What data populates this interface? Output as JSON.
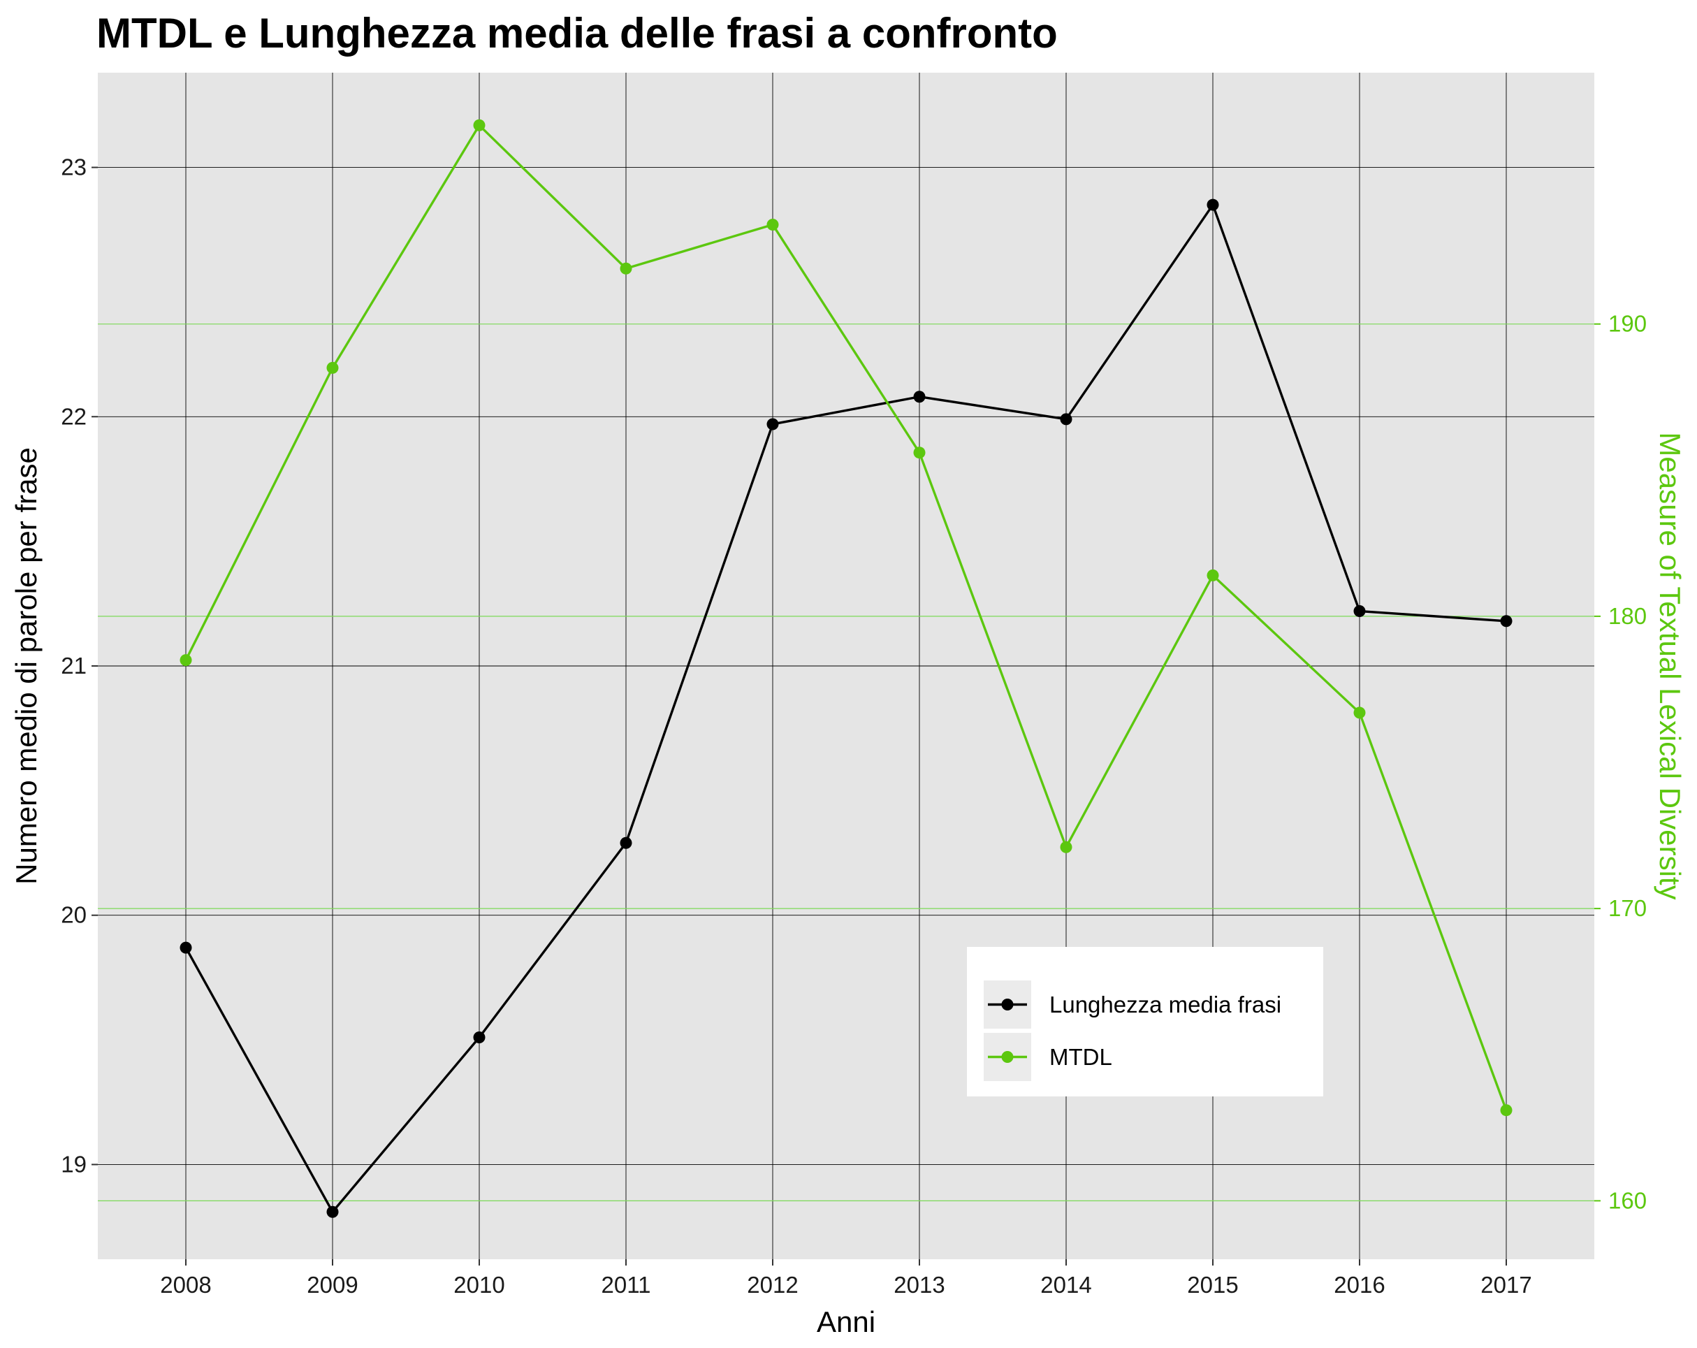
{
  "colors": {
    "panel_bg": "#e5e5e5",
    "grid": "#000000",
    "secondary_grid": "#7cd957",
    "series_primary": "#000000",
    "series_secondary": "#5cc70f",
    "legend_key_bg": "#ebebeb"
  },
  "chart_data": {
    "type": "line",
    "title": "MTDL e Lunghezza media delle frasi a confronto",
    "xlabel": "Anni",
    "ylabel": "Numero medio di parole per frase",
    "ylabel_right": "Measure of Textual Lexical Diversity",
    "x": [
      "2008",
      "2009",
      "2010",
      "2011",
      "2012",
      "2013",
      "2014",
      "2015",
      "2016",
      "2017"
    ],
    "yticks": [
      19,
      20,
      21,
      22,
      23
    ],
    "yticks_right": [
      160,
      170,
      180,
      190
    ],
    "ylim": [
      18.62,
      23.38
    ],
    "ylim_right": [
      158.0,
      198.6
    ],
    "grid": true,
    "legend_position": "inside-bottom-right",
    "series": [
      {
        "name": "Lunghezza media frasi",
        "axis": "left",
        "color": "#000000",
        "values": [
          19.87,
          18.81,
          19.51,
          20.29,
          21.97,
          22.08,
          21.99,
          22.85,
          21.22,
          21.18
        ]
      },
      {
        "name": "MTDL",
        "axis": "right",
        "color": "#5cc70f",
        "values": [
          178.5,
          188.5,
          196.8,
          191.9,
          193.4,
          185.6,
          172.1,
          181.4,
          176.7,
          163.1
        ]
      }
    ]
  }
}
